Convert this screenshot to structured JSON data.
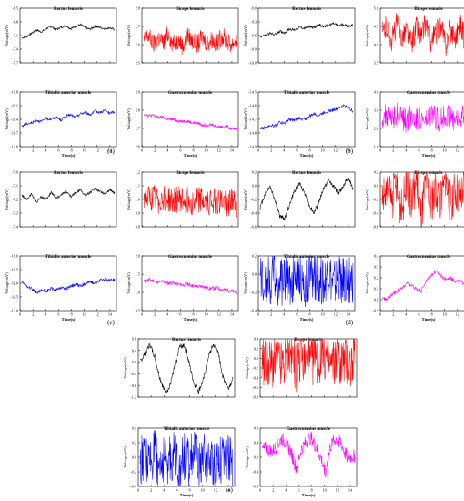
{
  "figure": {
    "panel_labels": [
      "(a)",
      "(b)",
      "(c)",
      "(d)",
      "(e)"
    ]
  },
  "chart_data": [
    {
      "panel": "(a)",
      "type": "line",
      "x_label": "Time(s)",
      "y_label": "Voltage(mV)",
      "x_ticks": [
        "0",
        "2",
        "4",
        "6",
        "8",
        "10",
        "12",
        "14"
      ],
      "x_range": [
        0,
        15
      ],
      "subplots": [
        {
          "title": "Rectus femoris",
          "color": "#000000",
          "y_ticks": [
            "-6.5",
            "-6.8",
            "-7.1",
            "-7.4",
            "-7.7"
          ],
          "y_range": [
            -7.7,
            -6.5
          ],
          "values": [
            -7.15,
            -7.12,
            -7.05,
            -6.98,
            -7.02,
            -6.95,
            -6.9,
            -6.97,
            -6.92,
            -6.88,
            -6.95,
            -6.9,
            -6.86,
            -6.93,
            -6.96,
            -6.9,
            -6.92,
            -6.95,
            -6.93,
            -6.97
          ]
        },
        {
          "title": "Biceps femoris",
          "color": "#ff0000",
          "y_ticks": [
            "2.8",
            "2.7",
            "2.6",
            "2.5"
          ],
          "y_range": [
            2.5,
            2.8
          ],
          "values": [
            2.62,
            2.65,
            2.6,
            2.64,
            2.61,
            2.66,
            2.6,
            2.63,
            2.59,
            2.65,
            2.62,
            2.6,
            2.64,
            2.61,
            2.63,
            2.6,
            2.65,
            2.62,
            2.6,
            2.63
          ]
        },
        {
          "title": "Tibialis anterior muscle",
          "color": "#0000ff",
          "y_ticks": [
            "-10.8",
            "-11.1",
            "-11.4",
            "-11.7",
            "-12.0"
          ],
          "y_range": [
            -12.0,
            -10.8
          ],
          "values": [
            -11.55,
            -11.5,
            -11.48,
            -11.42,
            -11.45,
            -11.38,
            -11.4,
            -11.35,
            -11.42,
            -11.33,
            -11.3,
            -11.36,
            -11.28,
            -11.25,
            -11.3,
            -11.22,
            -11.25,
            -11.2,
            -11.27,
            -11.23
          ]
        },
        {
          "title": "Gastrocnemius muscle",
          "color": "#ff00ff",
          "y_ticks": [
            "2.9",
            "2.8",
            "2.7",
            "2.6"
          ],
          "y_range": [
            2.6,
            2.9
          ],
          "values": [
            2.78,
            2.77,
            2.77,
            2.76,
            2.76,
            2.75,
            2.75,
            2.74,
            2.74,
            2.74,
            2.73,
            2.73,
            2.72,
            2.72,
            2.72,
            2.71,
            2.71,
            2.71,
            2.7,
            2.7
          ]
        }
      ]
    },
    {
      "panel": "(b)",
      "type": "line",
      "x_label": "Time(s)",
      "y_label": "Voltage(mV)",
      "x_ticks": [
        "0",
        "2",
        "4",
        "6",
        "8",
        "10",
        "12",
        "14"
      ],
      "x_range": [
        0,
        15
      ],
      "subplots": [
        {
          "title": "Rectus femoris",
          "color": "#000000",
          "y_ticks": [
            "-9.0",
            "-9.3",
            "-9.6",
            "-9.9",
            "-10.0"
          ],
          "y_range": [
            -10.0,
            -9.0
          ],
          "values": [
            -9.52,
            -9.5,
            -9.46,
            -9.48,
            -9.42,
            -9.45,
            -9.38,
            -9.4,
            -9.35,
            -9.37,
            -9.33,
            -9.36,
            -9.3,
            -9.34,
            -9.31,
            -9.28,
            -9.32,
            -9.3,
            -9.33,
            -9.31
          ]
        },
        {
          "title": "Biceps femoris",
          "color": "#ff0000",
          "y_ticks": [
            "5.0",
            "4.5",
            "4.0",
            "3.5"
          ],
          "y_range": [
            3.5,
            5.0
          ],
          "values": [
            4.3,
            4.5,
            4.1,
            4.6,
            4.2,
            4.4,
            4.0,
            4.5,
            4.2,
            4.6,
            4.1,
            4.3,
            4.5,
            4.0,
            4.4,
            4.2,
            4.6,
            4.1,
            4.3,
            4.0
          ]
        },
        {
          "title": "Tibialis anterior muscle",
          "color": "#0000ff",
          "y_ticks": [
            "-14.5",
            "-14.6",
            "-14.7",
            "-14.8",
            "-14.9"
          ],
          "y_range": [
            -14.9,
            -14.5
          ],
          "values": [
            -14.77,
            -14.76,
            -14.74,
            -14.75,
            -14.72,
            -14.73,
            -14.7,
            -14.71,
            -14.69,
            -14.7,
            -14.68,
            -14.66,
            -14.67,
            -14.65,
            -14.64,
            -14.63,
            -14.62,
            -14.6,
            -14.61,
            -14.64
          ]
        },
        {
          "title": "Gastrocnemius muscle",
          "color": "#ff00ff",
          "y_ticks": [
            "4.0",
            "3.0",
            "2.0",
            "1.0"
          ],
          "y_range": [
            1.0,
            4.0
          ],
          "values": [
            2.6,
            2.7,
            2.5,
            2.8,
            2.6,
            2.4,
            2.7,
            2.6,
            2.5,
            2.3,
            2.7,
            2.6,
            2.5,
            2.7,
            2.6,
            2.4,
            2.6,
            2.7,
            2.5,
            2.6
          ]
        }
      ]
    },
    {
      "panel": "(c)",
      "type": "line",
      "x_label": "Time(s)",
      "y_label": "Voltage(mV)",
      "x_ticks": [
        "0",
        "2",
        "4",
        "6",
        "8",
        "10",
        "12",
        "14"
      ],
      "x_range": [
        0,
        15
      ],
      "subplots": [
        {
          "title": "Rectus femoris",
          "color": "#000000",
          "y_ticks": [
            "-7.0",
            "-7.1",
            "-7.2",
            "-7.3",
            "-7.4"
          ],
          "y_range": [
            -7.4,
            -7.0
          ],
          "values": [
            -7.17,
            -7.2,
            -7.16,
            -7.22,
            -7.18,
            -7.2,
            -7.15,
            -7.19,
            -7.17,
            -7.14,
            -7.18,
            -7.15,
            -7.13,
            -7.17,
            -7.15,
            -7.12,
            -7.14,
            -7.16,
            -7.13,
            -7.15
          ]
        },
        {
          "title": "Biceps femoris",
          "color": "#ff0000",
          "y_ticks": [
            "1.2",
            "1.1",
            "1.0",
            "0.9",
            "0.8"
          ],
          "y_range": [
            0.8,
            1.2
          ],
          "values": [
            1.02,
            1.0,
            1.01,
            0.99,
            1.02,
            1.0,
            0.98,
            1.01,
            0.99,
            1.0,
            0.98,
            1.01,
            0.99,
            0.97,
            1.0,
            0.98,
            0.99,
            0.97,
            0.99,
            0.96
          ]
        },
        {
          "title": "Tibialis anterior muscle",
          "color": "#0000ff",
          "y_ticks": [
            "-10.0",
            "-10.5",
            "-11.0",
            "-11.5",
            "-12.0"
          ],
          "y_range": [
            -12.0,
            -10.0
          ],
          "values": [
            -10.95,
            -11.1,
            -11.2,
            -11.35,
            -11.25,
            -11.3,
            -11.2,
            -11.25,
            -11.15,
            -11.2,
            -11.1,
            -11.05,
            -11.1,
            -11.0,
            -10.95,
            -11.0,
            -10.9,
            -10.85,
            -10.9,
            -10.85
          ]
        },
        {
          "title": "Gastrocnemius muscle",
          "color": "#ff00ff",
          "y_ticks": [
            "2.0",
            "1.5",
            "1.0",
            "0.5"
          ],
          "y_range": [
            0.5,
            2.0
          ],
          "values": [
            1.3,
            1.35,
            1.32,
            1.28,
            1.3,
            1.25,
            1.27,
            1.22,
            1.2,
            1.23,
            1.18,
            1.15,
            1.17,
            1.12,
            1.1,
            1.12,
            1.08,
            1.06,
            1.03,
            1.0
          ]
        }
      ]
    },
    {
      "panel": "(d)",
      "type": "line",
      "x_label": "Time(s)",
      "y_label": "Voltage(mV)",
      "x_ticks": [
        "0",
        "2",
        "4",
        "6",
        "8",
        "10",
        "12",
        "14"
      ],
      "x_range": [
        0,
        15
      ],
      "subplots": [
        {
          "title": "Rectus femoris",
          "color": "#000000",
          "y_ticks": [
            "0.2",
            "0.0",
            "-0.2",
            "-0.4",
            "-0.6"
          ],
          "y_range": [
            -0.7,
            0.3
          ],
          "values": [
            -0.35,
            -0.1,
            0.05,
            -0.2,
            -0.5,
            -0.55,
            -0.3,
            -0.05,
            0.1,
            -0.05,
            -0.3,
            -0.45,
            -0.25,
            0.0,
            0.15,
            0.05,
            -0.1,
            0.05,
            0.2,
            0.0
          ]
        },
        {
          "title": "Biceps femoris",
          "color": "#ff0000",
          "y_ticks": [
            "0.2",
            "0.0",
            "-0.2",
            "-0.4",
            "-0.6"
          ],
          "y_range": [
            -0.4,
            0.3
          ],
          "values": [
            0.0,
            0.05,
            -0.05,
            0.15,
            -0.2,
            0.2,
            -0.1,
            0.25,
            -0.3,
            0.2,
            -0.15,
            0.1,
            -0.05,
            0.2,
            -0.1,
            0.05,
            -0.05,
            0.15,
            -0.1,
            0.0
          ]
        },
        {
          "title": "Tibialis anterior muscle",
          "color": "#0000ff",
          "y_ticks": [
            "0.2",
            "0.0",
            "-0.2",
            "-0.4"
          ],
          "y_range": [
            -0.4,
            0.3
          ],
          "values": [
            0.0,
            0.02,
            -0.02,
            0.08,
            -0.1,
            0.05,
            -0.03,
            0.02,
            0.1,
            -0.12,
            0.06,
            -0.02,
            0.03,
            -0.08,
            0.12,
            -0.1,
            0.04,
            -0.02,
            0.01,
            0.0
          ]
        },
        {
          "title": "Gastrocnemius muscle",
          "color": "#ff00ff",
          "y_ticks": [
            "0.4",
            "0.3",
            "0.2",
            "0.1",
            "0.0",
            "-0.1"
          ],
          "y_range": [
            -0.2,
            0.5
          ],
          "values": [
            -0.05,
            -0.05,
            0.0,
            0.05,
            0.08,
            0.15,
            0.12,
            0.08,
            0.05,
            0.18,
            0.25,
            0.3,
            0.25,
            0.2,
            0.22,
            0.18,
            0.17,
            0.15,
            0.15,
            0.15
          ]
        }
      ]
    },
    {
      "panel": "(e)",
      "type": "line",
      "x_label": "Time(s)",
      "y_label": "Voltage(mV)",
      "x_ticks": [
        "0",
        "2",
        "4",
        "6",
        "8",
        "10",
        "12",
        "14"
      ],
      "x_range": [
        0,
        15
      ],
      "subplots": [
        {
          "title": "Rectus femoris",
          "color": "#000000",
          "y_ticks": [
            "0.8",
            "0.4",
            "0.0",
            "-0.4",
            "-0.8",
            "-1.2"
          ],
          "y_range": [
            -1.2,
            0.8
          ],
          "values": [
            0.0,
            0.3,
            0.6,
            0.2,
            -0.5,
            -1.0,
            -0.9,
            -0.2,
            0.5,
            0.6,
            0.0,
            -0.7,
            -1.0,
            -0.6,
            0.2,
            0.6,
            0.3,
            -0.5,
            -0.9,
            -0.6
          ]
        },
        {
          "title": "Biceps femoris",
          "color": "#ff0000",
          "y_ticks": [
            "0.4",
            "0.2",
            "0.0",
            "-0.2",
            "-0.4",
            "-0.6",
            "-0.8"
          ],
          "y_range": [
            -0.8,
            0.5
          ],
          "values": [
            0.0,
            0.05,
            -0.05,
            0.1,
            -0.1,
            0.05,
            0.2,
            -0.2,
            0.05,
            0.0,
            -0.05,
            0.1,
            -0.05,
            0.15,
            -0.1,
            0.05,
            0.0,
            0.05,
            -0.05,
            0.0
          ]
        },
        {
          "title": "Tibialis anterior muscle",
          "color": "#0000ff",
          "y_ticks": [
            "0.4",
            "0.2",
            "0.0",
            "-0.2",
            "-0.4"
          ],
          "y_range": [
            -0.4,
            0.5
          ],
          "values": [
            0.0,
            0.05,
            -0.05,
            0.1,
            -0.08,
            0.05,
            0.0,
            0.08,
            -0.1,
            0.06,
            -0.03,
            0.1,
            -0.06,
            0.04,
            0.02,
            -0.05,
            0.08,
            -0.04,
            0.03,
            0.0
          ]
        },
        {
          "title": "Gastrocnemius muscle",
          "color": "#ff00ff",
          "y_ticks": [
            "0.8",
            "0.4",
            "0.0",
            "-0.4",
            "-0.8"
          ],
          "y_range": [
            -0.8,
            0.8
          ],
          "values": [
            0.2,
            0.25,
            0.15,
            0.3,
            0.5,
            0.4,
            0.1,
            -0.3,
            0.2,
            0.4,
            0.55,
            0.3,
            0.0,
            -0.4,
            0.3,
            0.5,
            0.45,
            0.1,
            0.0,
            0.05
          ]
        }
      ]
    }
  ]
}
